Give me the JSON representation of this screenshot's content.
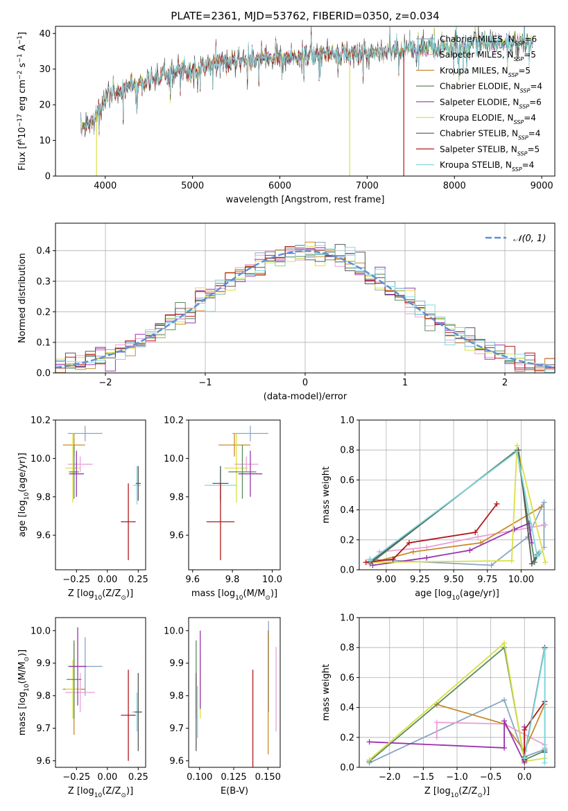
{
  "title": "PLATE=2361, MJD=53762, FIBERID=0350, z=0.034",
  "colors": {
    "chabrier_miles": "#8aa6c4",
    "salpeter_miles": "#e8a0d8",
    "kroupa_miles": "#c88a2a",
    "chabrier_elodie": "#5a8a5a",
    "salpeter_elodie": "#9b30b0",
    "kroupa_elodie": "#d8e040",
    "chabrier_stelib": "#555555",
    "salpeter_stelib": "#b01818",
    "kroupa_stelib": "#80d8e0",
    "normal": "#5b8fd6"
  },
  "legend": [
    {
      "key": "chabrier_miles",
      "label": "Chabrier MILES, N",
      "sub": "SSP",
      "tail": "=6"
    },
    {
      "key": "salpeter_miles",
      "label": "Salpeter MILES, N",
      "sub": "SSP",
      "tail": "=5"
    },
    {
      "key": "kroupa_miles",
      "label": "Kroupa MILES, N",
      "sub": "SSP",
      "tail": "=5"
    },
    {
      "key": "chabrier_elodie",
      "label": "Chabrier ELODIE, N",
      "sub": "SSP",
      "tail": "=4"
    },
    {
      "key": "salpeter_elodie",
      "label": "Salpeter ELODIE, N",
      "sub": "SSP",
      "tail": "=6"
    },
    {
      "key": "kroupa_elodie",
      "label": "Kroupa ELODIE, N",
      "sub": "SSP",
      "tail": "=4"
    },
    {
      "key": "chabrier_stelib",
      "label": "Chabrier STELIB, N",
      "sub": "SSP",
      "tail": "=4"
    },
    {
      "key": "salpeter_stelib",
      "label": "Salpeter STELIB, N",
      "sub": "SSP",
      "tail": "=5"
    },
    {
      "key": "kroupa_stelib",
      "label": "Kroupa STELIB, N",
      "sub": "SSP",
      "tail": "=4"
    }
  ],
  "chart_data": [
    {
      "id": "spectrum",
      "type": "line",
      "xlabel": "wavelength [Angstrom, rest frame]",
      "ylabel_parts": [
        "Flux [f",
        "λ",
        "10",
        "−17",
        " erg cm",
        "−2",
        " s",
        "−1",
        " A",
        "−1",
        "]"
      ],
      "xlim": [
        3430,
        9150
      ],
      "ylim": [
        0,
        42
      ],
      "xticks": [
        4000,
        5000,
        6000,
        7000,
        8000,
        9000
      ],
      "yticks": [
        0,
        10,
        20,
        30,
        40
      ],
      "continuum": [
        [
          3720,
          13
        ],
        [
          3800,
          15
        ],
        [
          3950,
          19
        ],
        [
          4000,
          22
        ],
        [
          4200,
          24.5
        ],
        [
          4500,
          27
        ],
        [
          4800,
          29
        ],
        [
          5000,
          30.5
        ],
        [
          5200,
          31
        ],
        [
          5500,
          32.5
        ],
        [
          6000,
          33
        ],
        [
          6500,
          34
        ],
        [
          7000,
          34.5
        ],
        [
          7500,
          35.5
        ],
        [
          8000,
          36.5
        ],
        [
          8500,
          37
        ],
        [
          8900,
          37.5
        ]
      ],
      "drop_lines": [
        {
          "key": "kroupa_elodie",
          "x": 3900
        },
        {
          "key": "kroupa_elodie",
          "x": 6800
        },
        {
          "key": "salpeter_stelib",
          "x": 7420
        }
      ]
    },
    {
      "id": "residuals",
      "type": "histogram",
      "xlabel": "(data-model)/error",
      "ylabel": "Normed distribution",
      "xlim": [
        -2.5,
        2.5
      ],
      "ylim": [
        0,
        0.49
      ],
      "xticks": [
        -2,
        -1,
        0,
        1,
        2
      ],
      "xticklabels": [
        "−2",
        "−1",
        "0",
        "1",
        "2"
      ],
      "yticks": [
        0,
        0.1,
        0.2,
        0.3,
        0.4
      ],
      "yticklabels": [
        "0.0",
        "0.1",
        "0.2",
        "0.3",
        "0.4"
      ],
      "legend_label": "𝒩(0, 1)",
      "grid": true
    },
    {
      "id": "age_vs_Z",
      "type": "errorbar",
      "xlabel_parts": [
        "Z [log",
        "10",
        "(Z/Z",
        "⊙",
        ")]"
      ],
      "ylabel_parts": [
        "age  [log",
        "10",
        "(age/yr)]"
      ],
      "xlim": [
        -0.42,
        0.31
      ],
      "ylim": [
        9.42,
        10.2
      ],
      "xticks": [
        -0.25,
        0.0,
        0.25
      ],
      "xticklabels": [
        "−0.25",
        "0.00",
        "0.25"
      ],
      "yticks": [
        9.6,
        9.8,
        10.0,
        10.2
      ],
      "yticklabels": [
        "9.6",
        "9.8",
        "10.0",
        "10.2"
      ],
      "points": [
        {
          "key": "chabrier_miles",
          "x": -0.18,
          "xerr": 0.14,
          "y": 10.13,
          "yerr": 0.04
        },
        {
          "key": "kroupa_miles",
          "x": -0.27,
          "xerr": 0.09,
          "y": 10.07,
          "yerr": 0.06
        },
        {
          "key": "salpeter_miles",
          "x": -0.22,
          "xerr": 0.1,
          "y": 9.97,
          "yerr": 0.04
        },
        {
          "key": "kroupa_elodie",
          "x": -0.28,
          "xerr": 0.06,
          "y": 9.95,
          "yerr": 0.18
        },
        {
          "key": "chabrier_elodie",
          "x": -0.27,
          "xerr": 0.04,
          "y": 9.93,
          "yerr": 0.14
        },
        {
          "key": "salpeter_elodie",
          "x": -0.25,
          "xerr": 0.06,
          "y": 9.92,
          "yerr": 0.12
        },
        {
          "key": "kroupa_stelib",
          "x": 0.24,
          "xerr": 0.03,
          "y": 9.86,
          "yerr": 0.1
        },
        {
          "key": "chabrier_stelib",
          "x": 0.25,
          "xerr": 0.02,
          "y": 9.87,
          "yerr": 0.09
        },
        {
          "key": "salpeter_stelib",
          "x": 0.17,
          "xerr": 0.06,
          "y": 9.67,
          "yerr": 0.2
        }
      ]
    },
    {
      "id": "age_vs_mass",
      "type": "errorbar",
      "xlabel_parts": [
        "mass [log",
        "10",
        "(M/M",
        "⊙",
        ")]"
      ],
      "ylabel": "",
      "xlim": [
        9.58,
        10.04
      ],
      "ylim": [
        9.42,
        10.2
      ],
      "xticks": [
        9.6,
        9.8,
        10.0
      ],
      "xticklabels": [
        "9.6",
        "9.8",
        "10.0"
      ],
      "yticks": [
        9.6,
        9.8,
        10.0,
        10.2
      ],
      "yticklabels": [
        "9.6",
        "9.8",
        "10.0",
        "10.2"
      ],
      "points": [
        {
          "key": "chabrier_miles",
          "x": 9.89,
          "xerr": 0.09,
          "y": 10.13,
          "yerr": 0.04
        },
        {
          "key": "kroupa_miles",
          "x": 9.81,
          "xerr": 0.08,
          "y": 10.07,
          "yerr": 0.06
        },
        {
          "key": "salpeter_miles",
          "x": 9.87,
          "xerr": 0.06,
          "y": 9.97,
          "yerr": 0.04
        },
        {
          "key": "kroupa_elodie",
          "x": 9.82,
          "xerr": 0.06,
          "y": 9.95,
          "yerr": 0.18
        },
        {
          "key": "chabrier_elodie",
          "x": 9.85,
          "xerr": 0.07,
          "y": 9.93,
          "yerr": 0.14
        },
        {
          "key": "salpeter_elodie",
          "x": 9.89,
          "xerr": 0.06,
          "y": 9.92,
          "yerr": 0.12
        },
        {
          "key": "kroupa_stelib",
          "x": 9.74,
          "xerr": 0.08,
          "y": 9.86,
          "yerr": 0.1
        },
        {
          "key": "chabrier_stelib",
          "x": 9.74,
          "xerr": 0.04,
          "y": 9.87,
          "yerr": 0.09
        },
        {
          "key": "salpeter_stelib",
          "x": 9.74,
          "xerr": 0.07,
          "y": 9.67,
          "yerr": 0.2
        }
      ]
    },
    {
      "id": "weight_vs_age",
      "type": "line",
      "xlabel_parts": [
        "age  [log",
        "10",
        "(age/yr)]"
      ],
      "ylabel": "mass weight",
      "xlim": [
        8.8,
        10.25
      ],
      "ylim": [
        0,
        1
      ],
      "xticks": [
        9.0,
        9.25,
        9.5,
        9.75,
        10.0
      ],
      "xticklabels": [
        "9.00",
        "9.25",
        "9.50",
        "9.75",
        "10.00"
      ],
      "yticks": [
        0,
        0.2,
        0.4,
        0.6,
        0.8,
        1.0
      ],
      "yticklabels": [
        "0.0",
        "0.2",
        "0.4",
        "0.6",
        "0.8",
        "1.0"
      ],
      "grid": true,
      "series": [
        {
          "key": "chabrier_miles",
          "x": [
            8.88,
            9.78,
            10.05,
            10.17,
            10.17,
            10.17
          ],
          "y": [
            0.07,
            0.03,
            0.22,
            0.45,
            0.3,
            0.15
          ]
        },
        {
          "key": "salpeter_miles",
          "x": [
            8.95,
            9.3,
            9.68,
            10.18
          ],
          "y": [
            0.12,
            0.15,
            0.22,
            0.3
          ]
        },
        {
          "key": "kroupa_miles",
          "x": [
            8.9,
            9.2,
            9.7,
            10.15
          ],
          "y": [
            0.05,
            0.12,
            0.18,
            0.42
          ]
        },
        {
          "key": "chabrier_elodie",
          "x": [
            8.88,
            9.97,
            10.1,
            10.13
          ],
          "y": [
            0.04,
            0.8,
            0.05,
            0.11
          ]
        },
        {
          "key": "salpeter_elodie",
          "x": [
            8.9,
            9.3,
            9.62,
            9.95,
            10.06,
            10.08
          ],
          "y": [
            0.03,
            0.08,
            0.13,
            0.27,
            0.31,
            0.18
          ]
        },
        {
          "key": "kroupa_elodie",
          "x": [
            8.88,
            9.93,
            9.97,
            10.18
          ],
          "y": [
            0.05,
            0.06,
            0.83,
            0.05
          ]
        },
        {
          "key": "chabrier_stelib",
          "x": [
            8.88,
            9.98,
            10.08,
            10.12
          ],
          "y": [
            0.05,
            0.8,
            0.04,
            0.1
          ]
        },
        {
          "key": "salpeter_stelib",
          "x": [
            8.85,
            9.05,
            9.17,
            9.66,
            9.82
          ],
          "y": [
            0.05,
            0.07,
            0.18,
            0.25,
            0.44
          ]
        },
        {
          "key": "kroupa_stelib",
          "x": [
            8.88,
            9.97,
            10.12,
            10.14
          ],
          "y": [
            0.06,
            0.79,
            0.09,
            0.12
          ]
        }
      ]
    },
    {
      "id": "mass_vs_Z",
      "type": "errorbar",
      "xlabel_parts": [
        "Z [log",
        "10",
        "(Z/Z",
        "⊙",
        ")]"
      ],
      "ylabel_parts": [
        "mass [log",
        "10",
        "(M/M",
        "⊙",
        ")]"
      ],
      "xlim": [
        -0.42,
        0.31
      ],
      "ylim": [
        9.58,
        10.04
      ],
      "xticks": [
        -0.25,
        0.0,
        0.25
      ],
      "xticklabels": [
        "−0.25",
        "0.00",
        "0.25"
      ],
      "yticks": [
        9.6,
        9.7,
        9.8,
        9.9,
        10.0
      ],
      "yticklabels": [
        "9.6",
        "9.7",
        "9.8",
        "9.9",
        "10.0"
      ],
      "points": [
        {
          "key": "chabrier_miles",
          "x": -0.18,
          "xerr": 0.14,
          "y": 9.89,
          "yerr": 0.09
        },
        {
          "key": "kroupa_miles",
          "x": -0.27,
          "xerr": 0.09,
          "y": 9.82,
          "yerr": 0.14
        },
        {
          "key": "salpeter_miles",
          "x": -0.22,
          "xerr": 0.12,
          "y": 9.81,
          "yerr": 0.06
        },
        {
          "key": "kroupa_elodie",
          "x": -0.28,
          "xerr": 0.06,
          "y": 9.82,
          "yerr": 0.09
        },
        {
          "key": "chabrier_elodie",
          "x": -0.27,
          "xerr": 0.06,
          "y": 9.85,
          "yerr": 0.12
        },
        {
          "key": "salpeter_elodie",
          "x": -0.24,
          "xerr": 0.07,
          "y": 9.89,
          "yerr": 0.12
        },
        {
          "key": "kroupa_stelib",
          "x": 0.24,
          "xerr": 0.04,
          "y": 9.75,
          "yerr": 0.06
        },
        {
          "key": "chabrier_stelib",
          "x": 0.25,
          "xerr": 0.03,
          "y": 9.75,
          "yerr": 0.12
        },
        {
          "key": "salpeter_stelib",
          "x": 0.17,
          "xerr": 0.06,
          "y": 9.74,
          "yerr": 0.14
        }
      ]
    },
    {
      "id": "mass_vs_ebv",
      "type": "errorbar",
      "xlabel": "E(B-V)",
      "ylabel": "",
      "xlim": [
        0.092,
        0.159
      ],
      "ylim": [
        9.58,
        10.04
      ],
      "xticks": [
        0.1,
        0.125,
        0.15
      ],
      "xticklabels": [
        "0.100",
        "0.125",
        "0.150"
      ],
      "yticks": [
        9.6,
        9.7,
        9.8,
        9.9,
        10.0
      ],
      "yticklabels": [
        "9.6",
        "9.7",
        "9.8",
        "9.9",
        "10.0"
      ],
      "points": [
        {
          "key": "chabrier_miles",
          "x": 0.1505,
          "xerr": 0,
          "y": 9.89,
          "yerr": 0.14
        },
        {
          "key": "kroupa_miles",
          "x": 0.1502,
          "xerr": 0,
          "y": 9.81,
          "yerr": 0.19
        },
        {
          "key": "salpeter_miles",
          "x": 0.156,
          "xerr": 0,
          "y": 9.82,
          "yerr": 0.13
        },
        {
          "key": "kroupa_elodie",
          "x": 0.1005,
          "xerr": 0,
          "y": 9.83,
          "yerr": 0.1
        },
        {
          "key": "chabrier_elodie",
          "x": 0.0975,
          "xerr": 0,
          "y": 9.85,
          "yerr": 0.12
        },
        {
          "key": "salpeter_elodie",
          "x": 0.1005,
          "xerr": 0,
          "y": 9.88,
          "yerr": 0.12
        },
        {
          "key": "kroupa_stelib",
          "x": 0.0985,
          "xerr": 0,
          "y": 9.75,
          "yerr": 0.08
        },
        {
          "key": "chabrier_stelib",
          "x": 0.0975,
          "xerr": 0,
          "y": 9.75,
          "yerr": 0.12
        },
        {
          "key": "salpeter_stelib",
          "x": 0.139,
          "xerr": 0,
          "y": 9.73,
          "yerr": 0.15
        }
      ]
    },
    {
      "id": "weight_vs_Z",
      "type": "line",
      "xlabel_parts": [
        "Z [log",
        "10",
        "(Z/Z",
        "⊙",
        ")]"
      ],
      "ylabel": "mass weight",
      "xlim": [
        -2.45,
        0.45
      ],
      "ylim": [
        0,
        1
      ],
      "xticks": [
        -2.0,
        -1.5,
        -1.0,
        -0.5,
        0.0
      ],
      "xticklabels": [
        "−2.0",
        "−1.5",
        "−1.0",
        "−0.5",
        "0.0"
      ],
      "yticks": [
        0,
        0.2,
        0.4,
        0.6,
        0.8,
        1.0
      ],
      "yticklabels": [
        "0.0",
        "0.2",
        "0.4",
        "0.6",
        "0.8",
        "1.0"
      ],
      "grid": true,
      "series": [
        {
          "key": "chabrier_miles",
          "x": [
            -2.3,
            -0.3,
            0.0,
            0.3
          ],
          "y": [
            0.03,
            0.45,
            0.07,
            0.12
          ]
        },
        {
          "key": "salpeter_miles",
          "x": [
            -1.3,
            -1.3,
            -0.3,
            0.3,
            0.3
          ],
          "y": [
            0.2,
            0.3,
            0.29,
            0.15,
            0.13
          ]
        },
        {
          "key": "kroupa_miles",
          "x": [
            -1.3,
            -0.3,
            0.0,
            0.3
          ],
          "y": [
            0.42,
            0.29,
            0.11,
            0.42
          ]
        },
        {
          "key": "chabrier_elodie",
          "x": [
            -2.3,
            -0.3,
            0.0,
            0.3
          ],
          "y": [
            0.04,
            0.8,
            0.05,
            0.11
          ]
        },
        {
          "key": "salpeter_elodie",
          "x": [
            -2.3,
            -0.3,
            -0.3,
            0.0,
            0.0
          ],
          "y": [
            0.17,
            0.13,
            0.31,
            0.03,
            0.27
          ]
        },
        {
          "key": "kroupa_elodie",
          "x": [
            -2.3,
            -0.3,
            0.0,
            0.3
          ],
          "y": [
            0.05,
            0.83,
            0.04,
            0.06
          ]
        },
        {
          "key": "chabrier_stelib",
          "x": [
            0.0,
            0.0,
            0.3,
            0.3
          ],
          "y": [
            0.04,
            0.07,
            0.8,
            0.1
          ]
        },
        {
          "key": "salpeter_stelib",
          "x": [
            0.0,
            0.0,
            0.3
          ],
          "y": [
            0.05,
            0.25,
            0.44
          ]
        },
        {
          "key": "kroupa_stelib",
          "x": [
            0.0,
            0.3,
            0.3
          ],
          "y": [
            0.06,
            0.79,
            0.03
          ]
        }
      ]
    }
  ]
}
